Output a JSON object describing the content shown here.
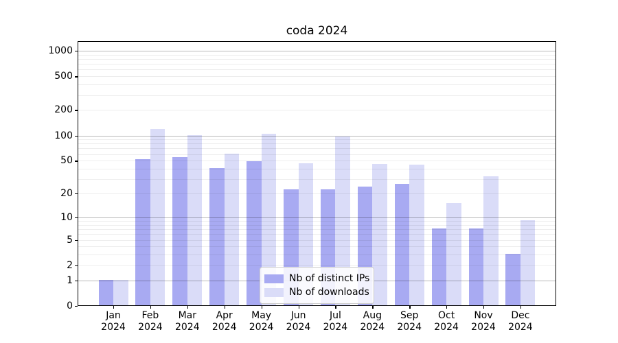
{
  "title": "coda 2024",
  "chart_data": {
    "type": "bar",
    "title": "coda 2024",
    "x_categories": [
      "Jan",
      "Feb",
      "Mar",
      "Apr",
      "May",
      "Jun",
      "Jul",
      "Aug",
      "Sep",
      "Oct",
      "Nov",
      "Dec"
    ],
    "x_year_line": "2024",
    "series": [
      {
        "name": "Nb of distinct IPs",
        "color": "#a8aaf2",
        "values": [
          1,
          51,
          54,
          40,
          48,
          22,
          22,
          24,
          26,
          7,
          7,
          3
        ]
      },
      {
        "name": "Nb of downloads",
        "color": "#dadcf8",
        "values": [
          1,
          118,
          100,
          60,
          102,
          46,
          96,
          45,
          44,
          15,
          32,
          9
        ]
      }
    ],
    "y_ticks": [
      0,
      1,
      2,
      5,
      10,
      20,
      50,
      100,
      200,
      500,
      1000
    ],
    "y_scale": "quasi-log (asinh-like), linear near 0",
    "ylim": [
      0,
      1300
    ],
    "grid": "horizontal, major at powers of 10, minor at 2-9 multiples, drawn above bars",
    "legend_position": "lower center"
  }
}
